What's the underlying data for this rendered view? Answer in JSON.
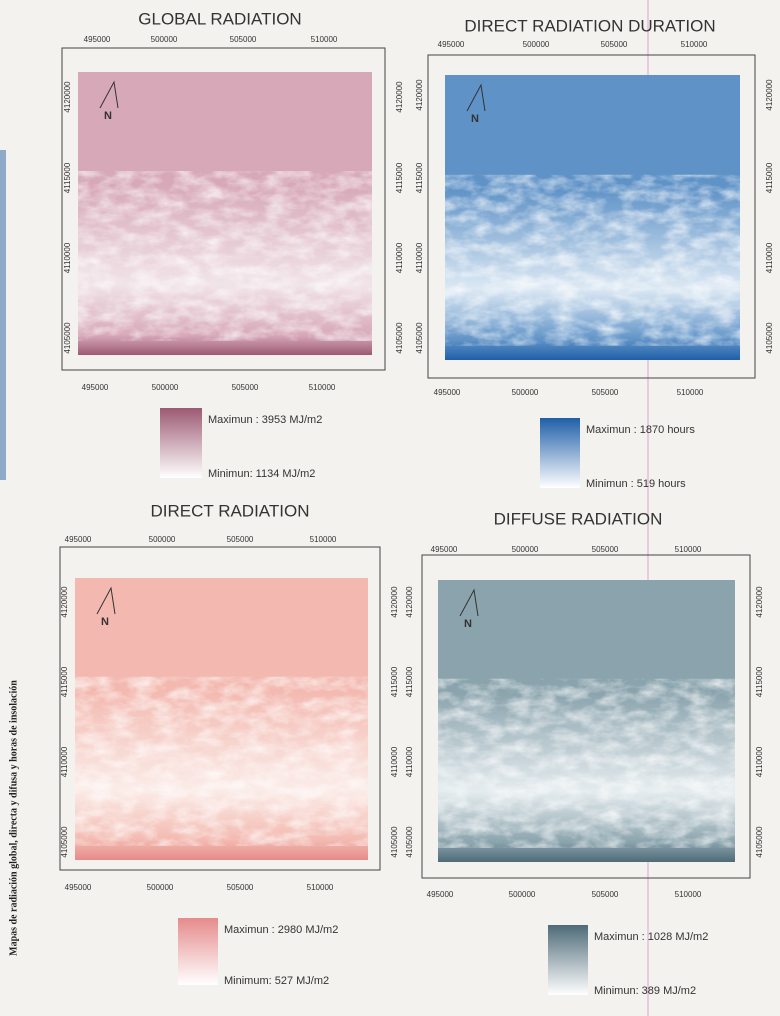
{
  "caption": "Mapas de radiación global, directa y difusa y horas de insolación",
  "panels": [
    {
      "title": "GLOBAL RADIATION",
      "x_ticks": [
        "495000",
        "500000",
        "505000",
        "510000"
      ],
      "y_ticks": [
        "4120000",
        "4115000",
        "4110000",
        "4105000"
      ],
      "north": "N",
      "legend_max": "Maximun : 3953 MJ/m2",
      "legend_min": "Minimun: 1134 MJ/m2"
    },
    {
      "title": "DIRECT RADIATION DURATION",
      "x_ticks": [
        "495000",
        "500000",
        "505000",
        "510000"
      ],
      "y_ticks": [
        "4120000",
        "4115000",
        "4110000",
        "4105000"
      ],
      "north": "N",
      "legend_max": "Maximun :  1870 hours",
      "legend_min": "Minimun : 519 hours"
    },
    {
      "title": "DIRECT RADIATION",
      "x_ticks": [
        "495000",
        "500000",
        "505000",
        "510000"
      ],
      "y_ticks": [
        "4120000",
        "4115000",
        "4110000",
        "4105000"
      ],
      "north": "N",
      "legend_max": "Maximun : 2980 MJ/m2",
      "legend_min": "Minimum: 527 MJ/m2"
    },
    {
      "title": "DIFFUSE RADIATION",
      "x_ticks": [
        "495000",
        "500000",
        "505000",
        "510000"
      ],
      "y_ticks": [
        "4120000",
        "4115000",
        "4110000",
        "4105000"
      ],
      "north": "N",
      "legend_max": "Maximun : 1028 MJ/m2",
      "legend_min": "Minimun: 389 MJ/m2"
    }
  ]
}
